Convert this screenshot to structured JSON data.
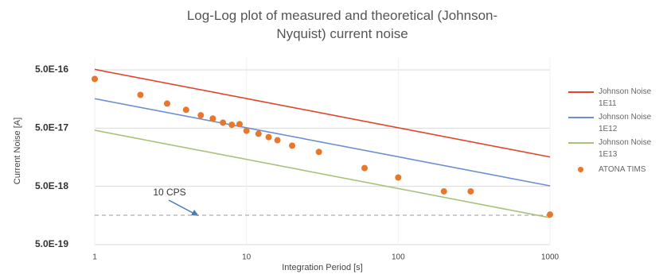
{
  "chart_data": {
    "type": "line",
    "title": "Log-Log plot of measured and theoretical (Johnson-Nyquist) current noise",
    "x_label": "Integration Period [s]",
    "y_label": "Current Noise [A]",
    "x_log": true,
    "y_log": true,
    "grid": true,
    "xlim": [
      1,
      1000
    ],
    "xticks": [
      1,
      10,
      100,
      1000
    ],
    "ylim": [
      5e-19,
      8e-16
    ],
    "yticks": [
      {
        "value": 5e-19,
        "label": "5.0E-19"
      },
      {
        "value": 5e-18,
        "label": "5.0E-18"
      },
      {
        "value": 5e-17,
        "label": "5.0E-17"
      },
      {
        "value": 5e-16,
        "label": "5.0E-16"
      }
    ],
    "annotation": "10 CPS",
    "reference_line": 1.6e-18,
    "series": [
      {
        "name": "Johnson Noise 1E11",
        "type": "line",
        "color": "#e0452a",
        "x": [
          1,
          1000
        ],
        "values": [
          5.1e-16,
          1.6e-17
        ]
      },
      {
        "name": "Johnson Noise 1E12",
        "type": "line",
        "color": "#6b8fd0",
        "x": [
          1,
          1000
        ],
        "values": [
          1.6e-16,
          5.1e-18
        ]
      },
      {
        "name": "Johnson Noise 1E13",
        "type": "line",
        "color": "#a9c27a",
        "x": [
          1,
          1000
        ],
        "values": [
          4.6e-17,
          1.45e-18
        ]
      },
      {
        "name": "ATONA TIMS",
        "type": "scatter",
        "color": "#e8772e",
        "x": [
          1,
          2,
          3,
          4,
          5,
          6,
          7,
          8,
          9,
          10,
          12,
          14,
          16,
          20,
          30,
          60,
          100,
          200,
          300,
          1000
        ],
        "values": [
          3.49e-16,
          1.86e-16,
          1.32e-16,
          1.03e-16,
          8.3e-17,
          7.3e-17,
          6.2e-17,
          5.7e-17,
          5.85e-17,
          4.5e-17,
          4e-17,
          3.5e-17,
          3.1e-17,
          2.5e-17,
          1.95e-17,
          1.03e-17,
          7.1e-18,
          4.1e-18,
          4.1e-18,
          1.64e-18
        ]
      }
    ]
  }
}
